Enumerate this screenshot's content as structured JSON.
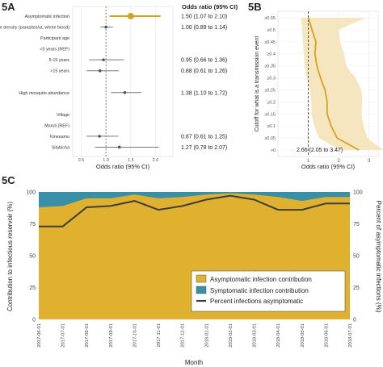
{
  "chart_data": [
    {
      "panel": "5A",
      "type": "forest",
      "header": "Odds ratio (95% CI)",
      "xlabel": "Odds ratio (95% CI)",
      "xticks": [
        "0.5",
        "1.0",
        "1.5",
        "2.0"
      ],
      "xlim": [
        0.33,
        2.35
      ],
      "rows": [
        {
          "label": "Asymptomatic infection",
          "or": 1.5,
          "lo": 1.07,
          "hi": 2.1,
          "text": "1.50 (1.07 to 2.10)",
          "highlight": true
        },
        {
          "label": "Parasite density (parasites/uL whole blood)",
          "or": 1.0,
          "lo": 0.89,
          "hi": 1.14,
          "text": "1.00 (0.89 to 1.14)"
        },
        {
          "label": "Participant age"
        },
        {
          "label": "<5 years (REF)"
        },
        {
          "label": "5-15 years",
          "or": 0.95,
          "lo": 0.66,
          "hi": 1.36,
          "text": "0.95 (0.66 to 1.36)"
        },
        {
          "label": ">15 years",
          "or": 0.88,
          "lo": 0.61,
          "hi": 1.26,
          "text": "0.88 (0.61 to 1.26)"
        },
        {
          "label": ""
        },
        {
          "label": "High mosquito abundance",
          "or": 1.38,
          "lo": 1.1,
          "hi": 1.72,
          "text": "1.38 (1.10 to 1.72)"
        },
        {
          "label": ""
        },
        {
          "label": "Village"
        },
        {
          "label": "Maruti (REF)"
        },
        {
          "label": "Kinesamo",
          "or": 0.87,
          "lo": 0.61,
          "hi": 1.25,
          "text": "0.87 (0.61 to 1.25)"
        },
        {
          "label": "Sitabicha",
          "or": 1.27,
          "or_lo_hi_note": "",
          "lo": 0.78,
          "hi": 2.07,
          "text": "1.27 (0.78 to 2.07)"
        }
      ],
      "colors": {
        "highlight": "#d7a21b",
        "point": "#555555",
        "grid": "#e6e6e6"
      }
    },
    {
      "panel": "5B",
      "type": "line",
      "xlabel": "Odds ratio (95% CI)",
      "ylabel": "Cutoff for what is a transmission event",
      "xticks": [
        "1",
        "2",
        "3"
      ],
      "xlim": [
        0,
        3.3
      ],
      "categories": [
        ">0",
        "≥0.05",
        "≥0.1",
        "≥0.15",
        "≥0.2",
        "≥0.25",
        "≥0.3",
        "≥0.35",
        "≥0.4",
        "≥0.45",
        "≥0.5",
        "≥0.55"
      ],
      "or": [
        2.66,
        1.95,
        1.75,
        1.62,
        1.62,
        1.55,
        1.4,
        1.28,
        1.22,
        1.25,
        1.12,
        1.0
      ],
      "lo": [
        2.05,
        1.35,
        1.2,
        1.1,
        1.1,
        1.05,
        0.95,
        0.88,
        0.85,
        0.82,
        0.8,
        0.75
      ],
      "hi": [
        3.47,
        2.95,
        2.82,
        2.75,
        2.78,
        2.75,
        2.55,
        2.25,
        2.18,
        2.05,
        2.0,
        2.9
      ],
      "annotation": "2.66 (2.05 to 3.47)",
      "reference_line": 1,
      "colors": {
        "line": "#d7a21b",
        "band": "#f6e6c0"
      }
    },
    {
      "panel": "5C",
      "type": "area",
      "xlabel": "Month",
      "ylabel": "Contribution to infectious reservoir (%)",
      "y2label": "Percent of asymptomatic infections (%)",
      "yticks": [
        "0",
        "25",
        "50",
        "75",
        "100"
      ],
      "ylim": [
        0,
        100
      ],
      "categories": [
        "2017-06-01",
        "2017-07-01",
        "2017-08-01",
        "2017-09-01",
        "2017-10-01",
        "2017-11-01",
        "2017-12-01",
        "2018-01-01",
        "2018-02-01",
        "2018-03-01",
        "2018-04-01",
        "2018-05-01",
        "2018-06-01",
        "2018-07-01"
      ],
      "series": [
        {
          "name": "Asymptomatic infection contribution",
          "values": [
            88,
            89,
            95,
            95,
            98,
            95,
            96,
            98,
            99,
            98,
            96,
            93,
            96,
            96
          ]
        },
        {
          "name": "Symptomatic infection contribution",
          "values": [
            12,
            11,
            5,
            5,
            2,
            5,
            4,
            2,
            1,
            2,
            4,
            7,
            4,
            4
          ]
        },
        {
          "name": "Percent infections asymptomatic",
          "values": [
            73,
            73,
            88,
            89,
            93,
            86,
            89,
            94,
            97,
            94,
            86,
            86,
            91,
            91
          ]
        }
      ],
      "legend": "bottom-right",
      "colors": {
        "asym": "#e0b12e",
        "sym": "#3a8fa8",
        "line": "#3d3d3d"
      }
    }
  ],
  "labels": {
    "a": "5A",
    "b": "5B",
    "c": "5C"
  }
}
